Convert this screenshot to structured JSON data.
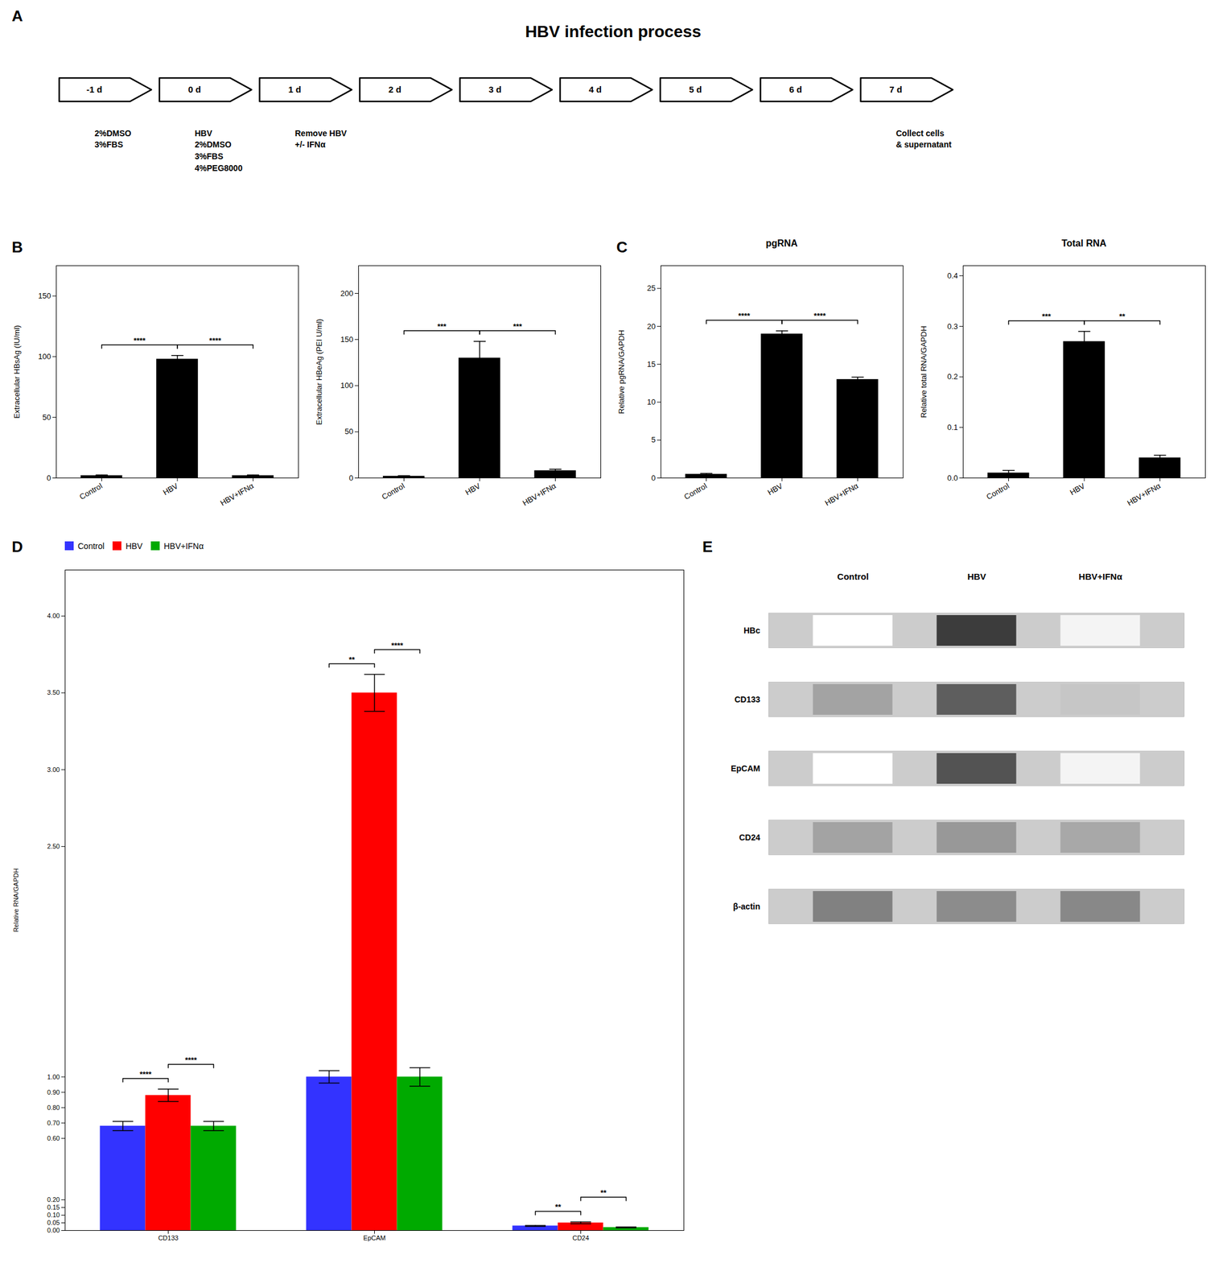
{
  "chart_data": [
    {
      "type": "timeline",
      "panel": "A",
      "title": "HBV infection process",
      "categories": [
        "-1 d",
        "0 d",
        "1 d",
        "2 d",
        "3 d",
        "4 d",
        "5 d",
        "6 d",
        "7 d"
      ],
      "annotations": [
        {
          "category": "-1 d",
          "text": "2%DMSO\n3%FBS"
        },
        {
          "category": "0 d",
          "text": "HBV\n2%DMSO\n3%FBS\n4%PEG8000"
        },
        {
          "category": "1 d",
          "text": "Remove HBV\n+/- IFNα"
        },
        {
          "category": "7 d",
          "text": "Collect cells\n& supernatant"
        }
      ]
    },
    {
      "type": "bar",
      "panel": "B",
      "ylabel": "Extracellular HBsAg (IU/ml)",
      "categories": [
        "Control",
        "HBV",
        "HBV+IFNα"
      ],
      "values": [
        2,
        98,
        2
      ],
      "errors": [
        0.5,
        3,
        0.5
      ],
      "ylim": [
        0,
        175
      ],
      "yticks": [
        0,
        50,
        100,
        150
      ],
      "significance": [
        "****",
        "****"
      ],
      "color": "#000000"
    },
    {
      "type": "bar",
      "ylabel": "Extracellular HBeAg (PEI U/ml)",
      "categories": [
        "Control",
        "HBV",
        "HBV+IFNα"
      ],
      "values": [
        2,
        130,
        8
      ],
      "errors": [
        0.5,
        18,
        1.5
      ],
      "ylim": [
        0,
        230
      ],
      "yticks": [
        0,
        50,
        100,
        150,
        200
      ],
      "significance": [
        "***",
        "***"
      ],
      "color": "#000000"
    },
    {
      "type": "bar",
      "panel": "C",
      "title": "pgRNA",
      "ylabel": "Relative pgRNA/GAPDH",
      "categories": [
        "Control",
        "HBV",
        "HBV+IFNα"
      ],
      "values": [
        0.5,
        19,
        13
      ],
      "errors": [
        0.1,
        0.4,
        0.3
      ],
      "ylim": [
        0,
        28
      ],
      "yticks": [
        0,
        5,
        10,
        15,
        20,
        25
      ],
      "significance": [
        "****",
        "****"
      ],
      "color": "#000000"
    },
    {
      "type": "bar",
      "title": "Total RNA",
      "ylabel": "Relative total RNA/GAPDH",
      "categories": [
        "Control",
        "HBV",
        "HBV+IFNα"
      ],
      "values": [
        0.01,
        0.27,
        0.04
      ],
      "errors": [
        0.005,
        0.02,
        0.005
      ],
      "ylim": [
        0,
        0.42
      ],
      "yticks": [
        {
          "value": 0,
          "label": "0.0"
        },
        0.1,
        0.2,
        0.3,
        0.4
      ],
      "significance": [
        "***",
        "**"
      ],
      "color": "#000000"
    },
    {
      "type": "grouped_bar",
      "panel": "D",
      "ylabel": "Relative RNA/GAPDH",
      "categories": [
        "CD133",
        "EpCAM",
        "CD24"
      ],
      "series": [
        {
          "name": "Control",
          "color": "#3333FF",
          "values": [
            0.68,
            1.0,
            0.03
          ],
          "errors": [
            0.03,
            0.04,
            0.003
          ]
        },
        {
          "name": "HBV",
          "color": "#FF0000",
          "values": [
            0.88,
            3.5,
            0.05
          ],
          "errors": [
            0.04,
            0.12,
            0.006
          ]
        },
        {
          "name": "HBV+IFNα",
          "color": "#00AA00",
          "values": [
            0.68,
            1.0,
            0.02
          ],
          "errors": [
            0.03,
            0.06,
            0.003
          ]
        }
      ],
      "significance": [
        [
          "****",
          "****"
        ],
        [
          "**",
          "****"
        ],
        [
          "**",
          "**"
        ]
      ],
      "ylim": [
        0,
        4.3
      ],
      "yticks": [
        {
          "value": 0,
          "label": "0.00"
        },
        0.05,
        {
          "value": 0.1,
          "label": "0.10"
        },
        0.15,
        {
          "value": 0.2,
          "label": "0.20"
        },
        {
          "value": 0.6,
          "label": "0.60"
        },
        {
          "value": 0.7,
          "label": "0.70"
        },
        {
          "value": 0.8,
          "label": "0.80"
        },
        {
          "value": 0.9,
          "label": "0.90"
        },
        {
          "value": 1,
          "label": "1.00"
        },
        {
          "value": 2.5,
          "label": "2.50"
        },
        {
          "value": 3,
          "label": "3.00"
        },
        {
          "value": 3.5,
          "label": "3.50"
        },
        {
          "value": 4,
          "label": "4.00"
        }
      ],
      "legend": "top"
    },
    {
      "type": "blot",
      "panel": "E",
      "categories": [
        "Control",
        "HBV",
        "HBV+IFNα"
      ],
      "rows": [
        "HBc",
        "CD133",
        "EpCAM",
        "CD24",
        "β-actin"
      ],
      "cells": [
        [
          0.0,
          0.85,
          0.05
        ],
        [
          0.4,
          0.7,
          0.25
        ],
        [
          0.0,
          0.75,
          0.05
        ],
        [
          0.4,
          0.45,
          0.38
        ],
        [
          0.55,
          0.5,
          0.52
        ]
      ]
    }
  ]
}
